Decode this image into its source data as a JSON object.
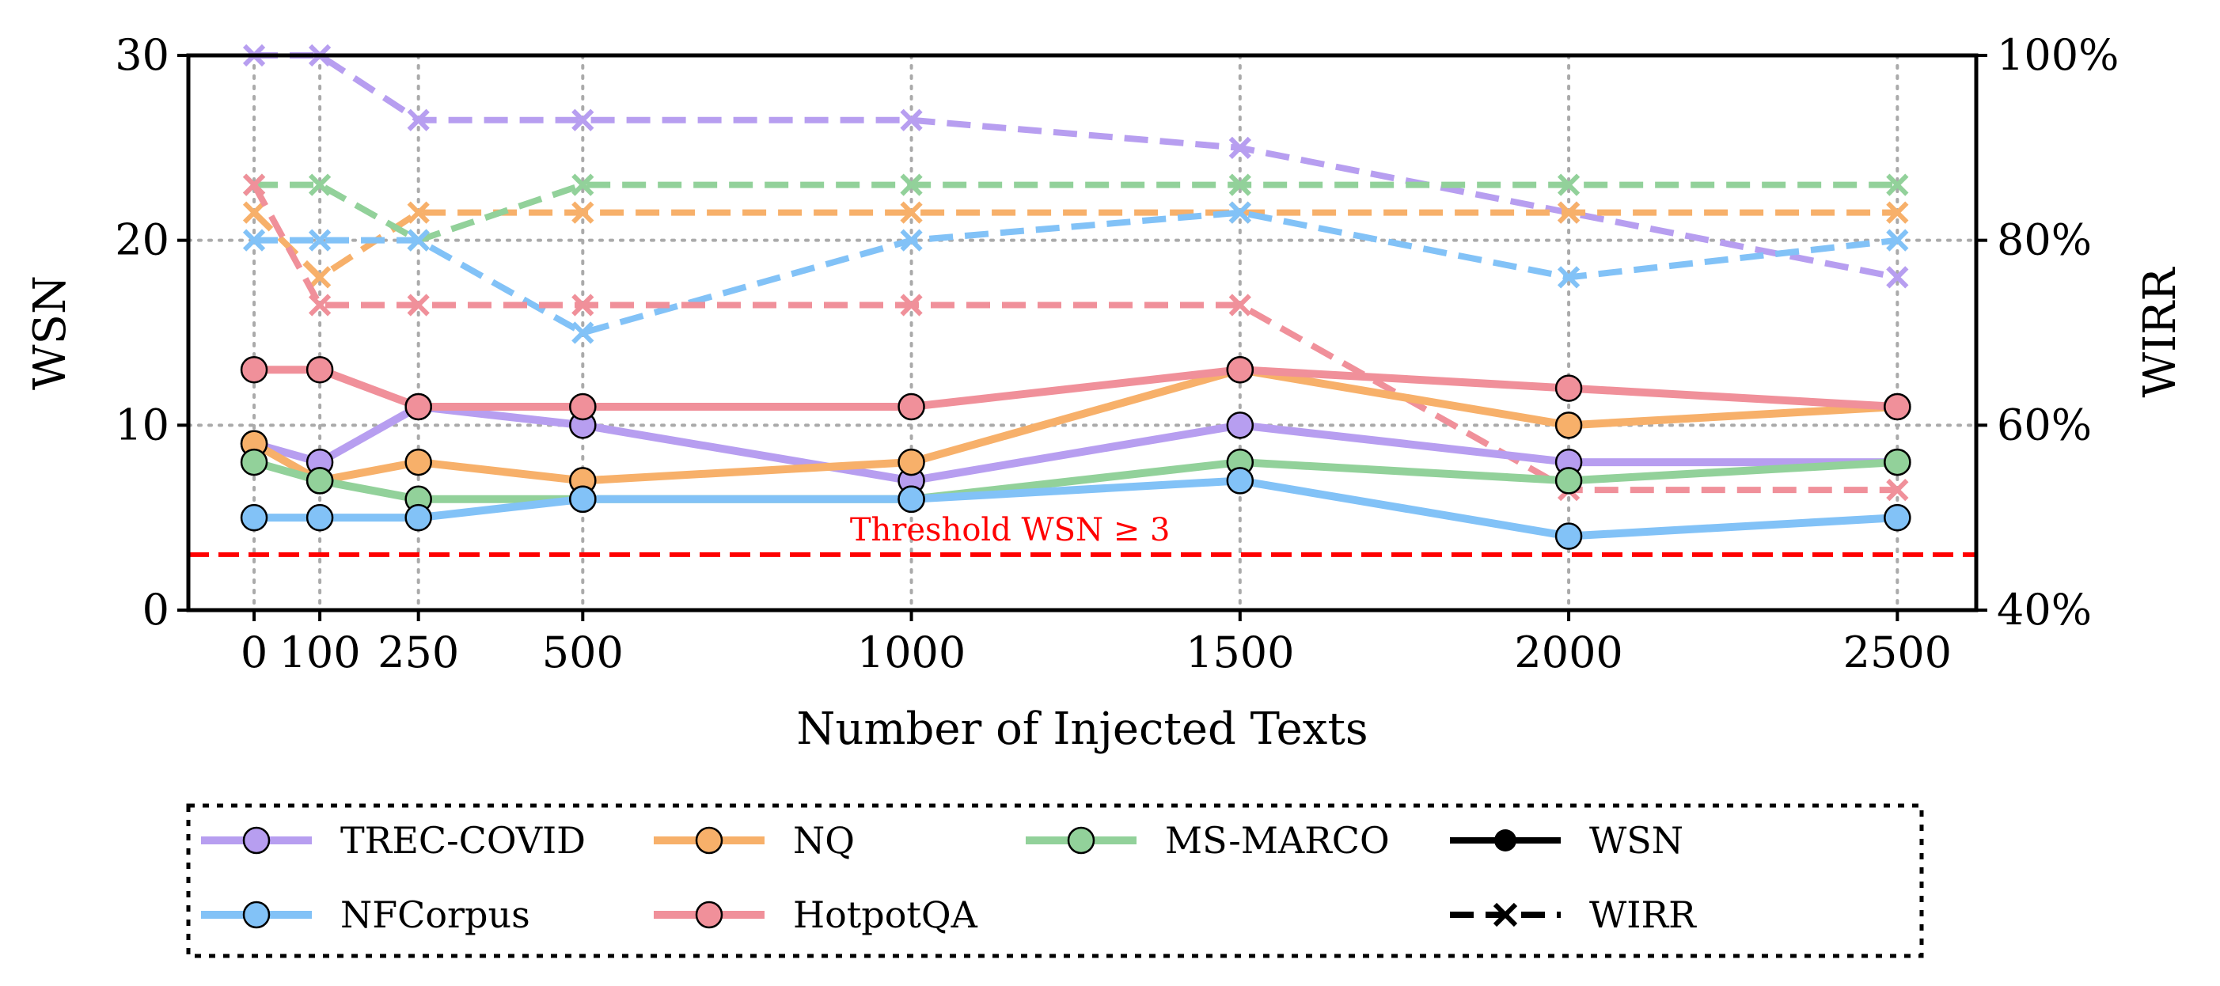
{
  "chart_data": {
    "type": "line",
    "xlabel": "Number of Injected Texts",
    "ylabel_left": "WSN",
    "ylabel_right": "WIRR",
    "x": [
      0,
      100,
      250,
      500,
      1000,
      1500,
      2000,
      2500
    ],
    "x_tick_labels": [
      "0",
      "100",
      "250",
      "500",
      "1000",
      "1500",
      "2000",
      "2500"
    ],
    "ylim_left": [
      0,
      30
    ],
    "y_left_ticks": [
      "0",
      "10",
      "20",
      "30"
    ],
    "ylim_right": [
      40,
      100
    ],
    "y_right_ticks": [
      "40%",
      "60%",
      "80%",
      "100%"
    ],
    "grid": "dotted",
    "threshold": {
      "value": 3,
      "label": "Threshold WSN ≥ 3",
      "color": "#ff0000"
    },
    "series": [
      {
        "name": "TREC-COVID",
        "color": "#b79ef0",
        "wsn": [
          9,
          8,
          11,
          10,
          7,
          10,
          8,
          8
        ],
        "wirr": [
          100,
          100,
          93,
          93,
          93,
          90,
          83,
          76
        ]
      },
      {
        "name": "NQ",
        "color": "#f7b06a",
        "wsn": [
          9,
          7,
          8,
          7,
          8,
          13,
          10,
          11
        ],
        "wirr": [
          83,
          76,
          83,
          83,
          83,
          83,
          83,
          83
        ]
      },
      {
        "name": "MS-MARCO",
        "color": "#92d19a",
        "wsn": [
          8,
          7,
          6,
          6,
          6,
          8,
          7,
          8
        ],
        "wirr": [
          86,
          86,
          80,
          86,
          86,
          86,
          86,
          86
        ]
      },
      {
        "name": "NFCorpus",
        "color": "#82c2f7",
        "wsn": [
          5,
          5,
          5,
          6,
          6,
          7,
          4,
          5
        ],
        "wirr": [
          80,
          80,
          80,
          70,
          80,
          83,
          76,
          80
        ]
      },
      {
        "name": "HotpotQA",
        "color": "#f0909a",
        "wsn": [
          13,
          13,
          11,
          11,
          11,
          13,
          12,
          11
        ],
        "wirr": [
          86,
          73,
          73,
          73,
          73,
          73,
          53,
          53
        ]
      }
    ],
    "legend": {
      "placement": "bottom",
      "style_entries": [
        {
          "label": "WSN",
          "style": "solid-circle"
        },
        {
          "label": "WIRR",
          "style": "dashed-x"
        }
      ]
    }
  }
}
